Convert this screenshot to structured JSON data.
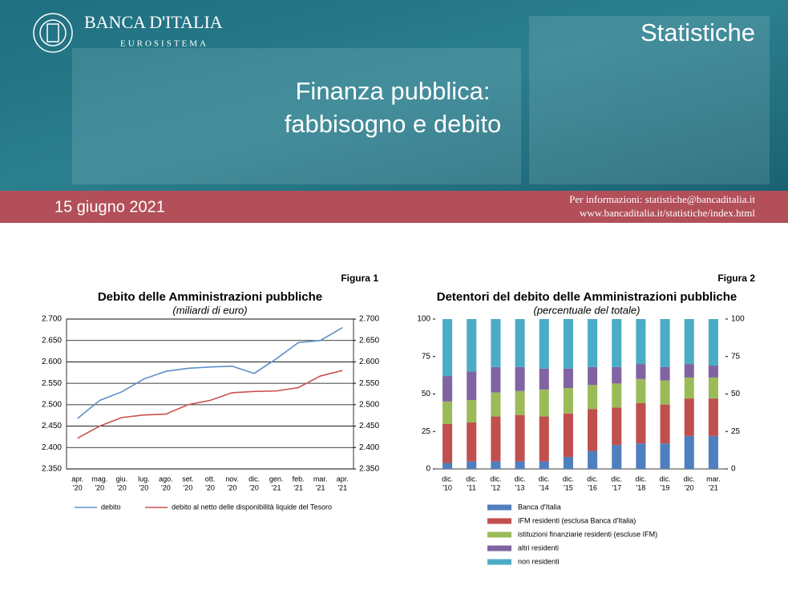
{
  "header": {
    "brand": "BANCA D'ITALIA",
    "brand_sub": "EUROSISTEMA",
    "section": "Statistiche",
    "title_lines": [
      "Finanza pubblica:",
      "fabbisogno e debito"
    ],
    "date": "15 giugno 2021",
    "info_lines": [
      "Per informazioni: statistiche@bancaditalia.it",
      "www.bancaditalia.it/statistiche/index.html"
    ]
  },
  "chart_data": [
    {
      "type": "line",
      "label": "Figura 1",
      "title": "Debito delle Amministrazioni pubbliche",
      "subtitle": "(miliardi di euro)",
      "categories": [
        [
          "apr.",
          "'20"
        ],
        [
          "mag.",
          "'20"
        ],
        [
          "giu.",
          "'20"
        ],
        [
          "lug.",
          "'20"
        ],
        [
          "ago.",
          "'20"
        ],
        [
          "set.",
          "'20"
        ],
        [
          "ott.",
          "'20"
        ],
        [
          "nov.",
          "'20"
        ],
        [
          "dic.",
          "'20"
        ],
        [
          "gen.",
          "'21"
        ],
        [
          "feb.",
          "'21"
        ],
        [
          "mar.",
          "'21"
        ],
        [
          "apr.",
          "'21"
        ]
      ],
      "series": [
        {
          "name": "debito",
          "color": "#5b8fc9",
          "values": [
            2468,
            2510,
            2530,
            2560,
            2578,
            2585,
            2588,
            2590,
            2573,
            2607,
            2645,
            2650,
            2680
          ]
        },
        {
          "name": "debito al netto delle disponibilità liquide del Tesoro",
          "color": "#c9514f",
          "values": [
            2422,
            2450,
            2470,
            2476,
            2478,
            2500,
            2510,
            2528,
            2531,
            2532,
            2540,
            2567,
            2580
          ]
        }
      ],
      "ylim": [
        2350,
        2700
      ],
      "yticks": [
        {
          "value": 2350,
          "label": "2.350"
        },
        {
          "value": 2400,
          "label": "2.400"
        },
        {
          "value": 2450,
          "label": "2.450"
        },
        {
          "value": 2500,
          "label": "2.500"
        },
        {
          "value": 2550,
          "label": "2.550"
        },
        {
          "value": 2600,
          "label": "2.600"
        },
        {
          "value": 2650,
          "label": "2.650"
        },
        {
          "value": 2700,
          "label": "2.700"
        }
      ],
      "y2lim": [
        2350,
        2700
      ],
      "y2ticks": [
        {
          "value": 2350,
          "label": "2.350"
        },
        {
          "value": 2400,
          "label": "2.400"
        },
        {
          "value": 2450,
          "label": "2.450"
        },
        {
          "value": 2500,
          "label": "2.500"
        },
        {
          "value": 2550,
          "label": "2.550"
        },
        {
          "value": 2600,
          "label": "2.600"
        },
        {
          "value": 2650,
          "label": "2.650"
        },
        {
          "value": 2700,
          "label": "2.700"
        }
      ],
      "grid": true
    },
    {
      "type": "stacked_bar",
      "label": "Figura 2",
      "title": "Detentori del debito delle Amministrazioni pubbliche",
      "subtitle": "(percentuale del totale)",
      "categories": [
        [
          "dic.",
          "'10"
        ],
        [
          "dic.",
          "'11"
        ],
        [
          "dic.",
          "'12"
        ],
        [
          "dic.",
          "'13"
        ],
        [
          "dic.",
          "'14"
        ],
        [
          "dic.",
          "'15"
        ],
        [
          "dic.",
          "'16"
        ],
        [
          "dic.",
          "'17"
        ],
        [
          "dic.",
          "'18"
        ],
        [
          "dic.",
          "'19"
        ],
        [
          "dic.",
          "'20"
        ],
        [
          "mar.",
          "'21"
        ]
      ],
      "series": [
        {
          "name": "Banca d'Italia",
          "color": "#4f7fbf",
          "values": [
            4,
            5,
            5,
            5,
            5,
            8,
            12,
            16,
            17,
            17,
            22,
            22
          ]
        },
        {
          "name": "IFM residenti (esclusa Banca d'Italia)",
          "color": "#c0504d",
          "values": [
            26,
            26,
            30,
            31,
            30,
            29,
            28,
            25,
            27,
            26,
            25,
            25
          ]
        },
        {
          "name": "istituzioni finanziarie residenti (escluse IFM)",
          "color": "#9bbb59",
          "values": [
            15,
            15,
            16,
            16,
            18,
            17,
            16,
            16,
            16,
            16,
            14,
            14
          ]
        },
        {
          "name": "altri residenti",
          "color": "#8064a2",
          "values": [
            17,
            19,
            17,
            16,
            14,
            13,
            12,
            11,
            10,
            9,
            9,
            8
          ]
        },
        {
          "name": "non residenti",
          "color": "#4bacc6",
          "values": [
            38,
            35,
            32,
            32,
            33,
            33,
            32,
            32,
            30,
            32,
            30,
            31
          ]
        }
      ],
      "ylim": [
        0,
        100
      ],
      "yticks": [
        0,
        25,
        50,
        75,
        100
      ],
      "y2lim": [
        0,
        100
      ],
      "y2ticks": [
        0,
        25,
        50,
        75,
        100
      ],
      "grid": false
    }
  ]
}
